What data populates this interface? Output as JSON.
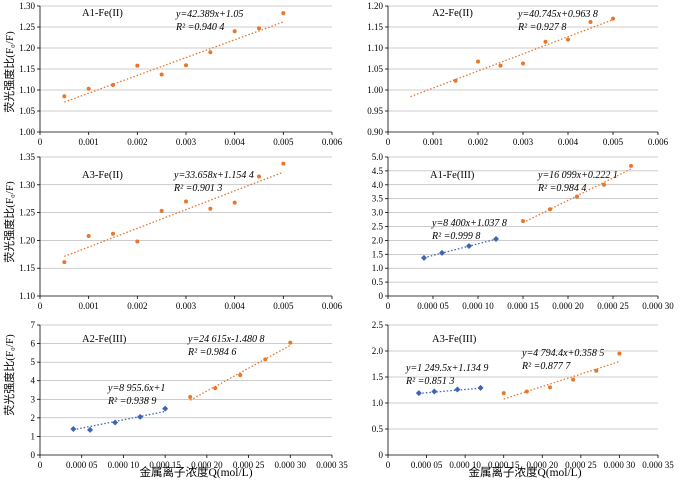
{
  "colors": {
    "orange": "#E8762B",
    "blue": "#3F64B5"
  },
  "xlabel": "金属离子浓度Q(mol/L)",
  "ylabel": "荧光强度比(F₀/F)",
  "chart_data": [
    {
      "type": "scatter",
      "title": "A1-Fe(II)",
      "xlim": [
        0,
        0.006
      ],
      "ylim": [
        1.0,
        1.3
      ],
      "xticks": [
        0,
        0.001,
        0.002,
        0.003,
        0.004,
        0.005,
        0.006
      ],
      "xtick_labels": [
        "0",
        "0.001",
        "0.002",
        "0.003",
        "0.004",
        "0.005",
        "0.006"
      ],
      "yticks": [
        1.0,
        1.05,
        1.1,
        1.15,
        1.2,
        1.25,
        1.3
      ],
      "ytick_labels": [
        "1.00",
        "1.05",
        "1.10",
        "1.15",
        "1.20",
        "1.25",
        "1.30"
      ],
      "grid": "horizontal",
      "series": [
        {
          "marker": "dot",
          "color": "orange",
          "x": [
            0.0005,
            0.001,
            0.0015,
            0.002,
            0.0025,
            0.003,
            0.0035,
            0.004,
            0.0045,
            0.005
          ],
          "y": [
            1.085,
            1.103,
            1.112,
            1.158,
            1.137,
            1.159,
            1.19,
            1.24,
            1.247,
            1.283
          ],
          "fit": {
            "slope": 42.389,
            "intercept": 1.05,
            "x": [
              0.0005,
              0.005
            ]
          },
          "eq": "y=42.389x+1.05",
          "r2": "R² =0.940 4"
        }
      ]
    },
    {
      "type": "scatter",
      "title": "A2-Fe(II)",
      "xlim": [
        0,
        0.006
      ],
      "ylim": [
        0.9,
        1.2
      ],
      "xticks": [
        0,
        0.001,
        0.002,
        0.003,
        0.004,
        0.005,
        0.006
      ],
      "xtick_labels": [
        "0",
        "0.001",
        "0.002",
        "0.003",
        "0.004",
        "0.005",
        "0.006"
      ],
      "yticks": [
        0.9,
        0.95,
        1.0,
        1.05,
        1.1,
        1.15,
        1.2
      ],
      "ytick_labels": [
        "0.90",
        "0.95",
        "1.00",
        "1.05",
        "1.10",
        "1.15",
        "1.20"
      ],
      "grid": "horizontal",
      "series": [
        {
          "marker": "dot",
          "color": "orange",
          "x": [
            0.0015,
            0.002,
            0.0025,
            0.003,
            0.0035,
            0.004,
            0.0045,
            0.005
          ],
          "y": [
            1.022,
            1.068,
            1.058,
            1.063,
            1.115,
            1.12,
            1.162,
            1.17
          ],
          "fit": {
            "slope": 40.745,
            "intercept": 0.9638,
            "x": [
              0.0005,
              0.005
            ]
          },
          "eq": "y=40.745x+0.963 8",
          "r2": "R² =0.927 8"
        }
      ]
    },
    {
      "type": "scatter",
      "title": "A3-Fe(II)",
      "xlim": [
        0,
        0.006
      ],
      "ylim": [
        1.1,
        1.35
      ],
      "xticks": [
        0,
        0.001,
        0.002,
        0.003,
        0.004,
        0.005,
        0.006
      ],
      "xtick_labels": [
        "0",
        "0.001",
        "0.002",
        "0.003",
        "0.004",
        "0.005",
        "0.006"
      ],
      "yticks": [
        1.1,
        1.15,
        1.2,
        1.25,
        1.3,
        1.35
      ],
      "ytick_labels": [
        "1.10",
        "1.15",
        "1.20",
        "1.25",
        "1.30",
        "1.35"
      ],
      "grid": "horizontal",
      "series": [
        {
          "marker": "dot",
          "color": "orange",
          "x": [
            0.0005,
            0.001,
            0.0015,
            0.002,
            0.0025,
            0.003,
            0.0035,
            0.004,
            0.0045,
            0.005
          ],
          "y": [
            1.161,
            1.208,
            1.212,
            1.198,
            1.253,
            1.27,
            1.257,
            1.268,
            1.315,
            1.338
          ],
          "fit": {
            "slope": 33.658,
            "intercept": 1.1544,
            "x": [
              0.0005,
              0.005
            ]
          },
          "eq": "y=33.658x+1.154 4",
          "r2": "R² =0.901 3"
        }
      ]
    },
    {
      "type": "scatter",
      "title": "A1-Fe(III)",
      "xlim": [
        0,
        0.0003
      ],
      "ylim": [
        0,
        5.0
      ],
      "xticks": [
        0,
        5e-05,
        0.0001,
        0.00015,
        0.0002,
        0.00025,
        0.0003
      ],
      "xtick_labels": [
        "0",
        "0.000 05",
        "0.000 10",
        "0.000 15",
        "0.000 20",
        "0.000 25",
        "0.000 30"
      ],
      "yticks": [
        0,
        0.5,
        1.0,
        1.5,
        2.0,
        2.5,
        3.0,
        3.5,
        4.0,
        4.5,
        5.0
      ],
      "ytick_labels": [
        "0",
        "0.5",
        "1.0",
        "1.5",
        "2.0",
        "2.5",
        "3.0",
        "3.5",
        "4.0",
        "4.5",
        "5.0"
      ],
      "grid": "horizontal",
      "series": [
        {
          "marker": "diamond",
          "color": "blue",
          "x": [
            4e-05,
            6e-05,
            9e-05,
            0.00012
          ],
          "y": [
            1.37,
            1.55,
            1.8,
            2.05
          ],
          "fit": {
            "slope": 8400,
            "intercept": 1.0378,
            "x": [
              4e-05,
              0.00012
            ]
          },
          "eq": "y=8 400x+1.037 8",
          "r2": "R² =0.999 8"
        },
        {
          "marker": "dot",
          "color": "orange",
          "x": [
            0.00015,
            0.00018,
            0.00021,
            0.00024,
            0.00027
          ],
          "y": [
            2.7,
            3.12,
            3.58,
            4.0,
            4.68
          ],
          "fit": {
            "slope": 16099,
            "intercept": 0.2221,
            "x": [
              0.00015,
              0.00027
            ]
          },
          "eq": "y=16 099x+0.222 1",
          "r2": "R² =0.984 4"
        }
      ]
    },
    {
      "type": "scatter",
      "title": "A2-Fe(III)",
      "xlim": [
        0,
        0.00035
      ],
      "ylim": [
        0,
        7
      ],
      "xticks": [
        0,
        5e-05,
        0.0001,
        0.00015,
        0.0002,
        0.00025,
        0.0003,
        0.00035
      ],
      "xtick_labels": [
        "0",
        "0.000 05",
        "0.000 10",
        "0.000 15",
        "0.000 20",
        "0.000 25",
        "0.000 30",
        "0.000 35"
      ],
      "yticks": [
        0,
        1,
        2,
        3,
        4,
        5,
        6,
        7
      ],
      "ytick_labels": [
        "0",
        "1",
        "2",
        "3",
        "4",
        "5",
        "6",
        "7"
      ],
      "grid": "horizontal",
      "series": [
        {
          "marker": "diamond",
          "color": "blue",
          "x": [
            4e-05,
            6e-05,
            9e-05,
            0.00012,
            0.00015
          ],
          "y": [
            1.4,
            1.35,
            1.75,
            2.05,
            2.5
          ],
          "fit": {
            "slope": 8955.6,
            "intercept": 1,
            "x": [
              4e-05,
              0.00015
            ]
          },
          "eq": "y=8 955.6x+1",
          "r2": "R² =0.938 9"
        },
        {
          "marker": "dot",
          "color": "orange",
          "x": [
            0.00018,
            0.00021,
            0.00024,
            0.00027,
            0.0003
          ],
          "y": [
            3.12,
            3.6,
            4.3,
            5.15,
            6.05
          ],
          "fit": {
            "slope": 24615,
            "intercept": -1.4808,
            "x": [
              0.00018,
              0.0003
            ]
          },
          "eq": "y=24 615x-1.480 8",
          "r2": "R² =0.984 6"
        }
      ]
    },
    {
      "type": "scatter",
      "title": "A3-Fe(III)",
      "xlim": [
        0,
        0.00035
      ],
      "ylim": [
        0,
        2.5
      ],
      "xticks": [
        0,
        5e-05,
        0.0001,
        0.00015,
        0.0002,
        0.00025,
        0.0003,
        0.00035
      ],
      "xtick_labels": [
        "0",
        "0.000 05",
        "0.000 10",
        "0.000 15",
        "0.000 20",
        "0.000 25",
        "0.000 30",
        "0.000 35"
      ],
      "yticks": [
        0,
        0.5,
        1.0,
        1.5,
        2.0,
        2.5
      ],
      "ytick_labels": [
        "0",
        "0.5",
        "1.0",
        "1.5",
        "2.0",
        "2.5"
      ],
      "grid": "horizontal",
      "series": [
        {
          "marker": "diamond",
          "color": "blue",
          "x": [
            4e-05,
            6e-05,
            9e-05,
            0.00012
          ],
          "y": [
            1.19,
            1.22,
            1.26,
            1.29
          ],
          "fit": {
            "slope": 1249.5,
            "intercept": 1.1349,
            "x": [
              4e-05,
              0.00012
            ]
          },
          "eq": "y=1 249.5x+1.134 9",
          "r2": "R² =0.851 3"
        },
        {
          "marker": "dot",
          "color": "orange",
          "x": [
            0.00015,
            0.00018,
            0.00021,
            0.00024,
            0.00027,
            0.0003
          ],
          "y": [
            1.19,
            1.22,
            1.3,
            1.45,
            1.62,
            1.95
          ],
          "fit": {
            "slope": 4794.4,
            "intercept": 0.3585,
            "x": [
              0.00015,
              0.0003
            ]
          },
          "eq": "y=4 794.4x+0.358 5",
          "r2": "R² =0.877 7"
        }
      ]
    }
  ]
}
